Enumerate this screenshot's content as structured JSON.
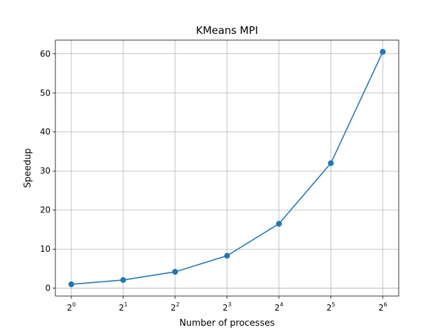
{
  "chart_data": {
    "type": "line",
    "title": "KMeans MPI",
    "xlabel": "Number of processes",
    "ylabel": "Speedup",
    "x": [
      1,
      2,
      4,
      8,
      16,
      32,
      64
    ],
    "x_scale": "log2",
    "x_tick_labels": [
      {
        "base": "2",
        "exp": "0"
      },
      {
        "base": "2",
        "exp": "1"
      },
      {
        "base": "2",
        "exp": "2"
      },
      {
        "base": "2",
        "exp": "3"
      },
      {
        "base": "2",
        "exp": "4"
      },
      {
        "base": "2",
        "exp": "5"
      },
      {
        "base": "2",
        "exp": "6"
      }
    ],
    "y_ticks": [
      0,
      10,
      20,
      30,
      40,
      50,
      60
    ],
    "ylim": [
      -2.0,
      63.5
    ],
    "grid": true,
    "series": [
      {
        "values": [
          1.0,
          2.1,
          4.2,
          8.3,
          16.5,
          32.0,
          60.5
        ],
        "color": "#1f77b4",
        "marker": "circle"
      }
    ]
  }
}
